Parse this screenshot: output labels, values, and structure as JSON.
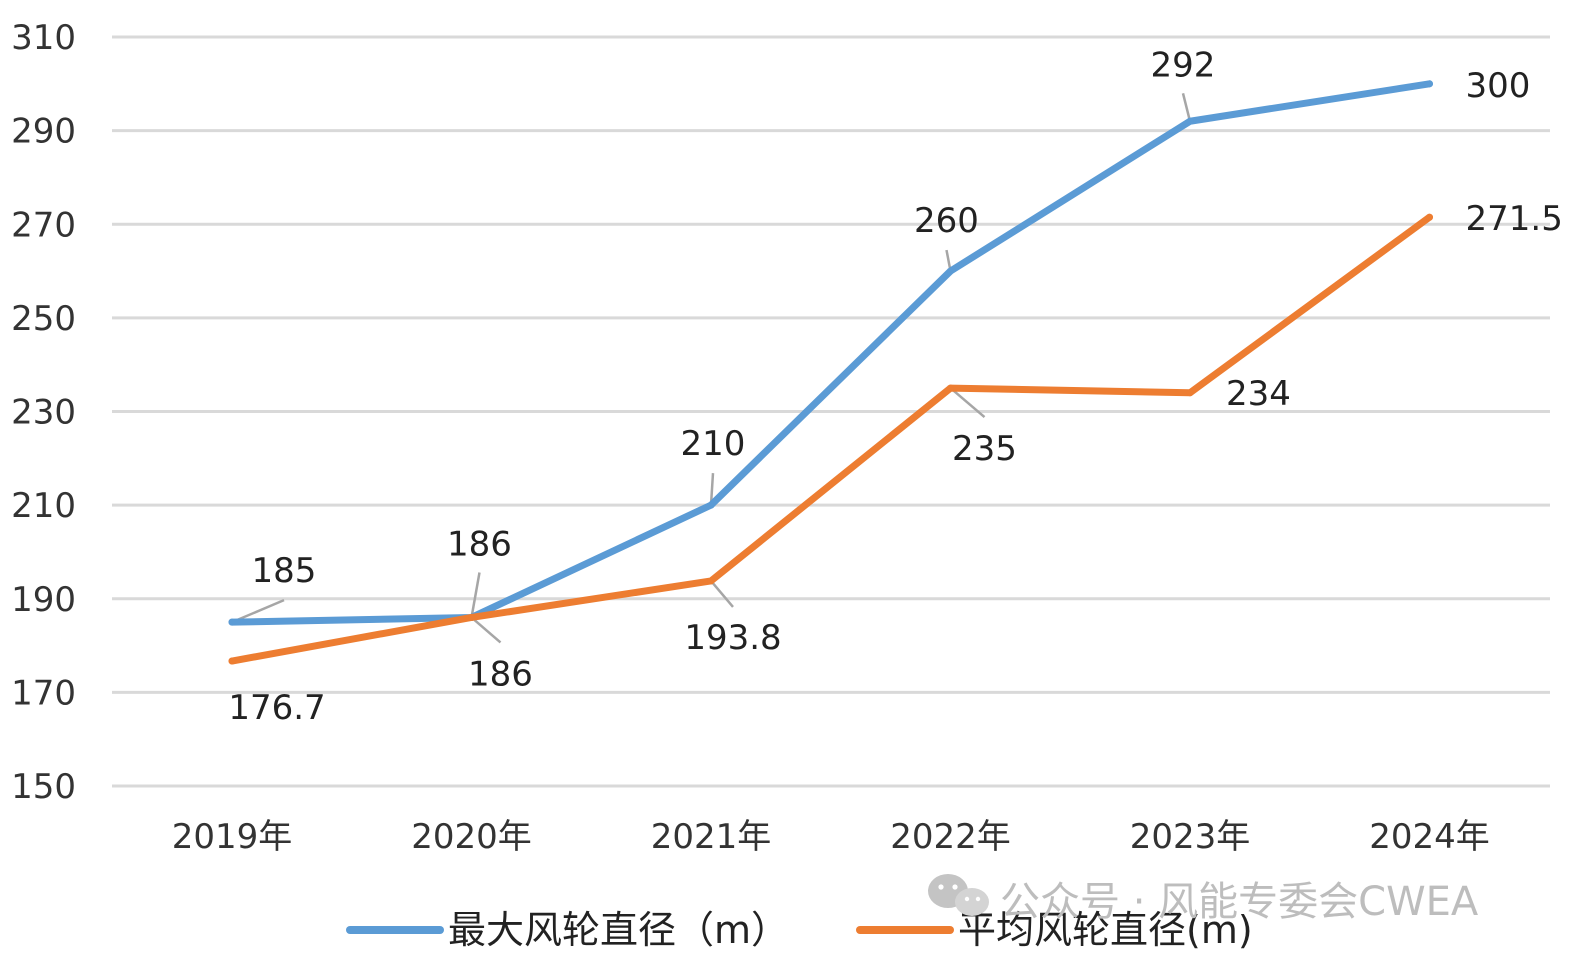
{
  "chart_data": {
    "type": "line",
    "title": "",
    "xlabel": "",
    "ylabel": "",
    "categories": [
      "2019年",
      "2020年",
      "2021年",
      "2022年",
      "2023年",
      "2024年"
    ],
    "ylim": [
      150,
      310
    ],
    "yticks": [
      150,
      170,
      190,
      210,
      230,
      250,
      270,
      290,
      310
    ],
    "grid": true,
    "legend_position": "bottom",
    "series": [
      {
        "name": "最大风轮直径（m）",
        "color": "#5B9BD5",
        "values": [
          185,
          186,
          210,
          260,
          292,
          300
        ],
        "labels": [
          "185",
          "186",
          "210",
          "260",
          "292",
          "300"
        ]
      },
      {
        "name": "平均风轮直径(m)",
        "color": "#ED7D31",
        "values": [
          176.7,
          186,
          193.8,
          235,
          234,
          271.5
        ],
        "labels": [
          "176.7",
          "186",
          "193.8",
          "235",
          "234",
          "271.5"
        ]
      }
    ]
  },
  "watermark": {
    "text": "公众号 · 风能专委会CWEA",
    "icon": "wechat-icon"
  }
}
